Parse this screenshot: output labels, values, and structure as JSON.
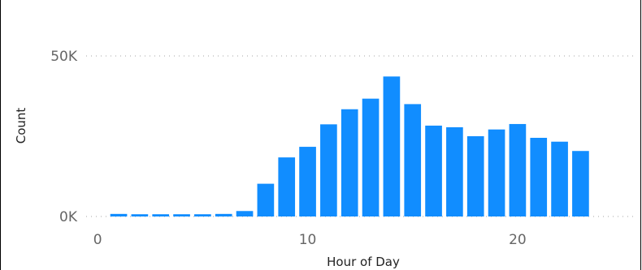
{
  "chart_data": {
    "type": "bar",
    "title": "",
    "xlabel": "Hour of Day",
    "ylabel": "Count",
    "x": [
      1,
      2,
      3,
      4,
      5,
      6,
      7,
      8,
      9,
      10,
      11,
      12,
      13,
      14,
      15,
      16,
      17,
      18,
      19,
      20,
      21,
      22,
      23
    ],
    "values": [
      800,
      700,
      700,
      700,
      700,
      800,
      1700,
      10200,
      18400,
      21700,
      28700,
      33400,
      36700,
      43600,
      35000,
      28300,
      27800,
      25000,
      27100,
      28800,
      24500,
      23300,
      20400
    ],
    "x_ticks": [
      0,
      10,
      20
    ],
    "x_tick_labels": [
      "0",
      "10",
      "20"
    ],
    "y_ticks": [
      0,
      50000
    ],
    "y_tick_labels": [
      "0K",
      "50K"
    ],
    "xlim": [
      -0.55,
      25.5
    ],
    "ylim": [
      0,
      50000
    ],
    "grid": true,
    "bar_color": "#118DFF",
    "gridline_color": "#b7b7b7",
    "tick_color": "#666666"
  }
}
